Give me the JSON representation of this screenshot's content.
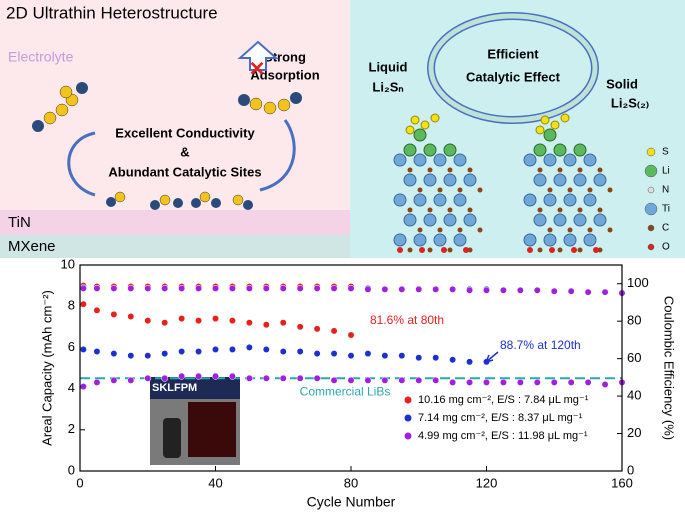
{
  "diagram": {
    "title": "2D Ultrathin Heterostructure",
    "electrolyte": "Electrolyte",
    "adsorption": [
      "Strong",
      "Adsorption"
    ],
    "conductivity": "Excellent Conductivity",
    "amp": "&",
    "sites": "Abundant Catalytic Sites",
    "layers": [
      "TiN",
      "MXene"
    ],
    "effect": [
      "Efficient",
      "Catalytic Effect"
    ],
    "liquid": [
      "Liquid",
      "Li₂Sₙ"
    ],
    "solid": [
      "Solid",
      "Li₂S₍₂₎"
    ],
    "atoms": [
      "S",
      "Li",
      "N",
      "Ti",
      "C",
      "O"
    ]
  },
  "chart_data": {
    "type": "scatter",
    "xlabel": "Cycle Number",
    "ylabel": "Areal Capacity (mAh cm⁻²)",
    "y2label": "Coulombic Efficiency (%)",
    "xlim": [
      0,
      160
    ],
    "xticks": [
      0,
      40,
      80,
      120,
      160
    ],
    "ylim": [
      0,
      10
    ],
    "yticks": [
      0,
      2,
      4,
      6,
      8,
      10
    ],
    "y2lim": [
      0,
      110
    ],
    "y2ticks": [
      0,
      20,
      40,
      60,
      80,
      100
    ],
    "x": [
      1,
      5,
      10,
      15,
      20,
      25,
      30,
      35,
      40,
      45,
      50,
      55,
      60,
      65,
      70,
      75,
      80,
      85,
      90,
      95,
      100,
      105,
      110,
      115,
      120,
      125,
      130,
      135,
      140,
      145,
      150,
      155,
      160
    ],
    "series": [
      {
        "name": "10.16 mg cm⁻², E/S : 7.84 μL mg⁻¹",
        "color": "#e8201c",
        "values": [
          8.1,
          7.8,
          7.6,
          7.5,
          7.3,
          7.2,
          7.4,
          7.3,
          7.4,
          7.3,
          7.2,
          7.1,
          7.2,
          7.0,
          6.9,
          6.8,
          6.6,
          null,
          null,
          null,
          null,
          null,
          null,
          null,
          null,
          null,
          null,
          null,
          null,
          null,
          null,
          null,
          null
        ]
      },
      {
        "name": "7.14 mg cm⁻², E/S : 8.37 μL mg⁻¹",
        "color": "#1c2fd0",
        "values": [
          5.9,
          5.8,
          5.7,
          5.6,
          5.6,
          5.7,
          5.8,
          5.8,
          5.9,
          5.9,
          6.0,
          5.9,
          5.8,
          5.8,
          5.7,
          5.7,
          5.6,
          5.7,
          5.6,
          5.6,
          5.5,
          5.5,
          5.4,
          5.3,
          5.3,
          null,
          null,
          null,
          null,
          null,
          null,
          null,
          null
        ]
      },
      {
        "name": "4.99 mg cm⁻², E/S : 11.98 μL mg⁻¹",
        "color": "#a020e0",
        "values": [
          4.1,
          4.3,
          4.4,
          4.4,
          4.5,
          4.5,
          4.6,
          4.6,
          4.6,
          4.6,
          4.5,
          4.5,
          4.5,
          4.5,
          4.5,
          4.4,
          4.4,
          4.4,
          4.4,
          4.4,
          4.4,
          4.4,
          4.3,
          4.3,
          4.3,
          4.3,
          4.3,
          4.3,
          4.3,
          4.3,
          4.3,
          4.2,
          4.3
        ]
      },
      {
        "axis": "y2",
        "color": "#e8201c",
        "values": [
          99,
          98.5,
          98.5,
          98.5,
          98.5,
          98.5,
          98.5,
          98.5,
          98.5,
          98.5,
          98.5,
          98.5,
          98.5,
          98.5,
          98.5,
          98.5,
          98.5,
          null,
          null,
          null,
          null,
          null,
          null,
          null,
          null,
          null,
          null,
          null,
          null,
          null,
          null,
          null,
          null
        ]
      },
      {
        "axis": "y2",
        "color": "#1c2fd0",
        "values": [
          98,
          97.5,
          97.5,
          97.5,
          97.5,
          97.5,
          97.5,
          97.5,
          97.5,
          97.5,
          97.5,
          97.5,
          97.5,
          97.5,
          97.5,
          97.5,
          97.5,
          97.5,
          97,
          97,
          97,
          97,
          97,
          97,
          97,
          null,
          null,
          null,
          null,
          null,
          null,
          null,
          null
        ]
      },
      {
        "axis": "y2",
        "color": "#a020e0",
        "values": [
          97.5,
          97.5,
          97.5,
          97.5,
          97.5,
          97.5,
          97.5,
          97.5,
          97.5,
          97.5,
          97.5,
          97.5,
          97.5,
          97.5,
          97.5,
          97.5,
          97.5,
          97,
          97,
          97,
          97,
          97,
          97,
          96.5,
          96.5,
          96.5,
          96.5,
          96.5,
          96,
          96,
          95.5,
          95.5,
          95
        ]
      }
    ],
    "annotations": [
      {
        "text": "81.6% at 80th",
        "color": "#e8201c"
      },
      {
        "text": "88.7% at 120th",
        "color": "#1c2fd0"
      }
    ],
    "reference_line": {
      "value": 4.5,
      "label": "Commercial LiBs",
      "color": "#2aa8a8"
    },
    "inset_text": "SKLFPM"
  }
}
